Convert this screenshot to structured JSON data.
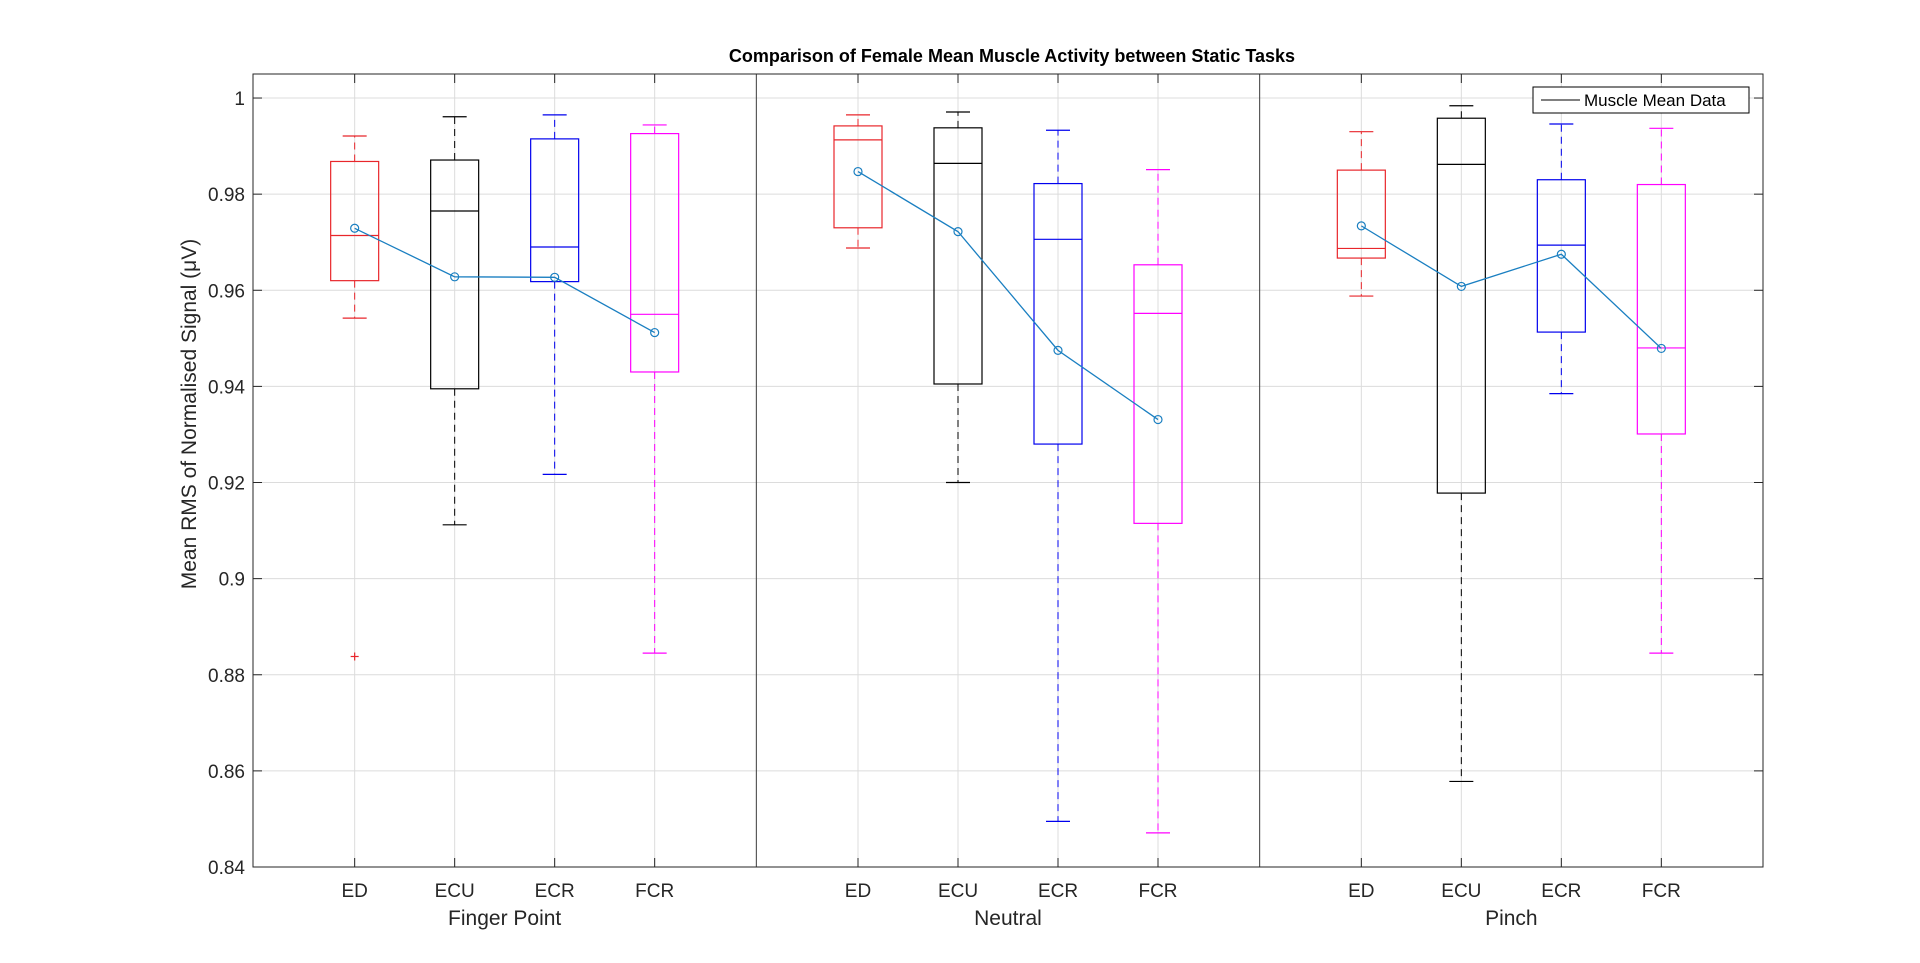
{
  "chart_data": {
    "type": "box",
    "title": "Comparison of Female Mean Muscle Activity between Static Tasks",
    "ylabel": "Mean RMS of Normalised Signal (μV)",
    "ylim": [
      0.84,
      1.005
    ],
    "yticks": [
      0.84,
      0.86,
      0.88,
      0.9,
      0.92,
      0.94,
      0.96,
      0.98,
      1
    ],
    "ytick_labels": [
      "0.84",
      "0.86",
      "0.88",
      "0.9",
      "0.92",
      "0.94",
      "0.96",
      "0.98",
      "1"
    ],
    "grid": true,
    "legend": {
      "position": "top-right",
      "label": "Muscle Mean Data"
    },
    "muscle_colors": {
      "ED": "#e8262b",
      "ECU": "#000000",
      "ECR": "#0000ee",
      "FCR": "#ff00ff"
    },
    "mean_line_color": "#1a7fc1",
    "groups": [
      {
        "task": "Finger Point",
        "boxes": [
          {
            "muscle": "ED",
            "whisker_low": 0.9542,
            "q1": 0.962,
            "median": 0.9714,
            "q3": 0.9868,
            "whisker_high": 0.9921,
            "mean": 0.9729,
            "outliers": [
              0.8838
            ]
          },
          {
            "muscle": "ECU",
            "whisker_low": 0.9112,
            "q1": 0.9395,
            "median": 0.9765,
            "q3": 0.9871,
            "whisker_high": 0.9961,
            "mean": 0.9628,
            "outliers": []
          },
          {
            "muscle": "ECR",
            "whisker_low": 0.9217,
            "q1": 0.9618,
            "median": 0.969,
            "q3": 0.9915,
            "whisker_high": 0.9965,
            "mean": 0.9627,
            "outliers": []
          },
          {
            "muscle": "FCR",
            "whisker_low": 0.8845,
            "q1": 0.943,
            "median": 0.955,
            "q3": 0.9926,
            "whisker_high": 0.9944,
            "mean": 0.9512,
            "outliers": []
          }
        ]
      },
      {
        "task": "Neutral",
        "boxes": [
          {
            "muscle": "ED",
            "whisker_low": 0.9688,
            "q1": 0.973,
            "median": 0.9913,
            "q3": 0.9942,
            "whisker_high": 0.9965,
            "mean": 0.9847,
            "outliers": []
          },
          {
            "muscle": "ECU",
            "whisker_low": 0.92,
            "q1": 0.9405,
            "median": 0.9864,
            "q3": 0.9938,
            "whisker_high": 0.9971,
            "mean": 0.9722,
            "outliers": []
          },
          {
            "muscle": "ECR",
            "whisker_low": 0.8495,
            "q1": 0.928,
            "median": 0.9706,
            "q3": 0.9822,
            "whisker_high": 0.9933,
            "mean": 0.9475,
            "outliers": []
          },
          {
            "muscle": "FCR",
            "whisker_low": 0.8471,
            "q1": 0.9115,
            "median": 0.9552,
            "q3": 0.9653,
            "whisker_high": 0.9851,
            "mean": 0.9331,
            "outliers": []
          }
        ]
      },
      {
        "task": "Pinch",
        "boxes": [
          {
            "muscle": "ED",
            "whisker_low": 0.9588,
            "q1": 0.9667,
            "median": 0.9687,
            "q3": 0.985,
            "whisker_high": 0.993,
            "mean": 0.9734,
            "outliers": []
          },
          {
            "muscle": "ECU",
            "whisker_low": 0.8578,
            "q1": 0.9178,
            "median": 0.9862,
            "q3": 0.9958,
            "whisker_high": 0.9984,
            "mean": 0.9608,
            "outliers": []
          },
          {
            "muscle": "ECR",
            "whisker_low": 0.9385,
            "q1": 0.9513,
            "median": 0.9694,
            "q3": 0.983,
            "whisker_high": 0.9946,
            "mean": 0.9675,
            "outliers": []
          },
          {
            "muscle": "FCR",
            "whisker_low": 0.8845,
            "q1": 0.9301,
            "median": 0.948,
            "q3": 0.982,
            "whisker_high": 0.9937,
            "mean": 0.9479,
            "outliers": []
          }
        ]
      }
    ]
  }
}
